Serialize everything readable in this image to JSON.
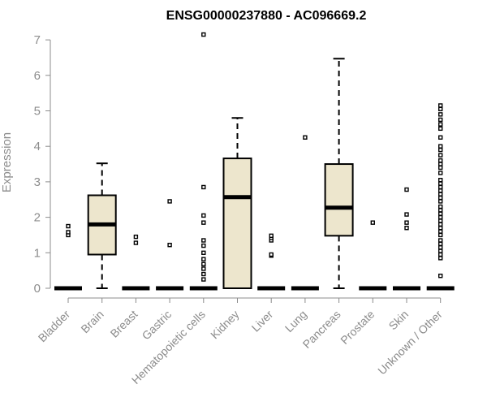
{
  "chart_data": {
    "type": "box",
    "title": "ENSG00000237880 - AC096669.2",
    "xlabel": "",
    "ylabel": "Expression",
    "ylim": [
      0,
      7
    ],
    "yticks": [
      0,
      1,
      2,
      3,
      4,
      5,
      6,
      7
    ],
    "grid": false,
    "legend": "none",
    "box_fill": "#ede6cd",
    "categories": [
      "Bladder",
      "Brain",
      "Breast",
      "Gastric",
      "Hematopoietic cells",
      "Kidney",
      "Liver",
      "Lung",
      "Pancreas",
      "Prostate",
      "Skin",
      "Unknown / Other"
    ],
    "boxes": [
      {
        "min": 0,
        "q1": 0,
        "median": 0,
        "q3": 0,
        "max": 0,
        "outliers": [
          1.5,
          1.58,
          1.75
        ]
      },
      {
        "min": 0,
        "q1": 0.95,
        "median": 1.8,
        "q3": 2.62,
        "max": 3.52,
        "outliers": []
      },
      {
        "min": 0,
        "q1": 0,
        "median": 0,
        "q3": 0,
        "max": 0,
        "outliers": [
          1.28,
          1.45
        ]
      },
      {
        "min": 0,
        "q1": 0,
        "median": 0,
        "q3": 0,
        "max": 0,
        "outliers": [
          1.22,
          2.45
        ]
      },
      {
        "min": 0,
        "q1": 0,
        "median": 0,
        "q3": 0,
        "max": 0,
        "outliers": [
          0.25,
          0.4,
          0.55,
          0.68,
          0.82,
          1.0,
          1.2,
          1.35,
          1.85,
          2.05,
          2.85,
          7.15
        ]
      },
      {
        "min": 0,
        "q1": 0,
        "median": 2.57,
        "q3": 3.66,
        "max": 4.8,
        "outliers": []
      },
      {
        "min": 0,
        "q1": 0,
        "median": 0,
        "q3": 0,
        "max": 0,
        "outliers": [
          0.92,
          0.95,
          1.35,
          1.42,
          1.48
        ]
      },
      {
        "min": 0,
        "q1": 0,
        "median": 0,
        "q3": 0,
        "max": 0,
        "outliers": [
          4.25
        ]
      },
      {
        "min": 0,
        "q1": 1.48,
        "median": 2.27,
        "q3": 3.5,
        "max": 6.47,
        "outliers": []
      },
      {
        "min": 0,
        "q1": 0,
        "median": 0,
        "q3": 0,
        "max": 0,
        "outliers": [
          1.85
        ]
      },
      {
        "min": 0,
        "q1": 0,
        "median": 0,
        "q3": 0,
        "max": 0,
        "outliers": [
          1.7,
          1.85,
          2.08,
          2.78
        ]
      },
      {
        "min": 0,
        "q1": 0,
        "median": 0,
        "q3": 0,
        "max": 0,
        "outliers": [
          0.35,
          0.85,
          0.95,
          1.05,
          1.15,
          1.25,
          1.35,
          1.5,
          1.6,
          1.7,
          1.8,
          1.9,
          2.0,
          2.1,
          2.2,
          2.3,
          2.45,
          2.55,
          2.65,
          2.75,
          2.85,
          2.95,
          3.05,
          3.25,
          3.4,
          3.5,
          3.6,
          3.75,
          3.9,
          4.0,
          4.25,
          4.5,
          4.62,
          4.75,
          4.9,
          5.05,
          5.15
        ]
      }
    ]
  }
}
